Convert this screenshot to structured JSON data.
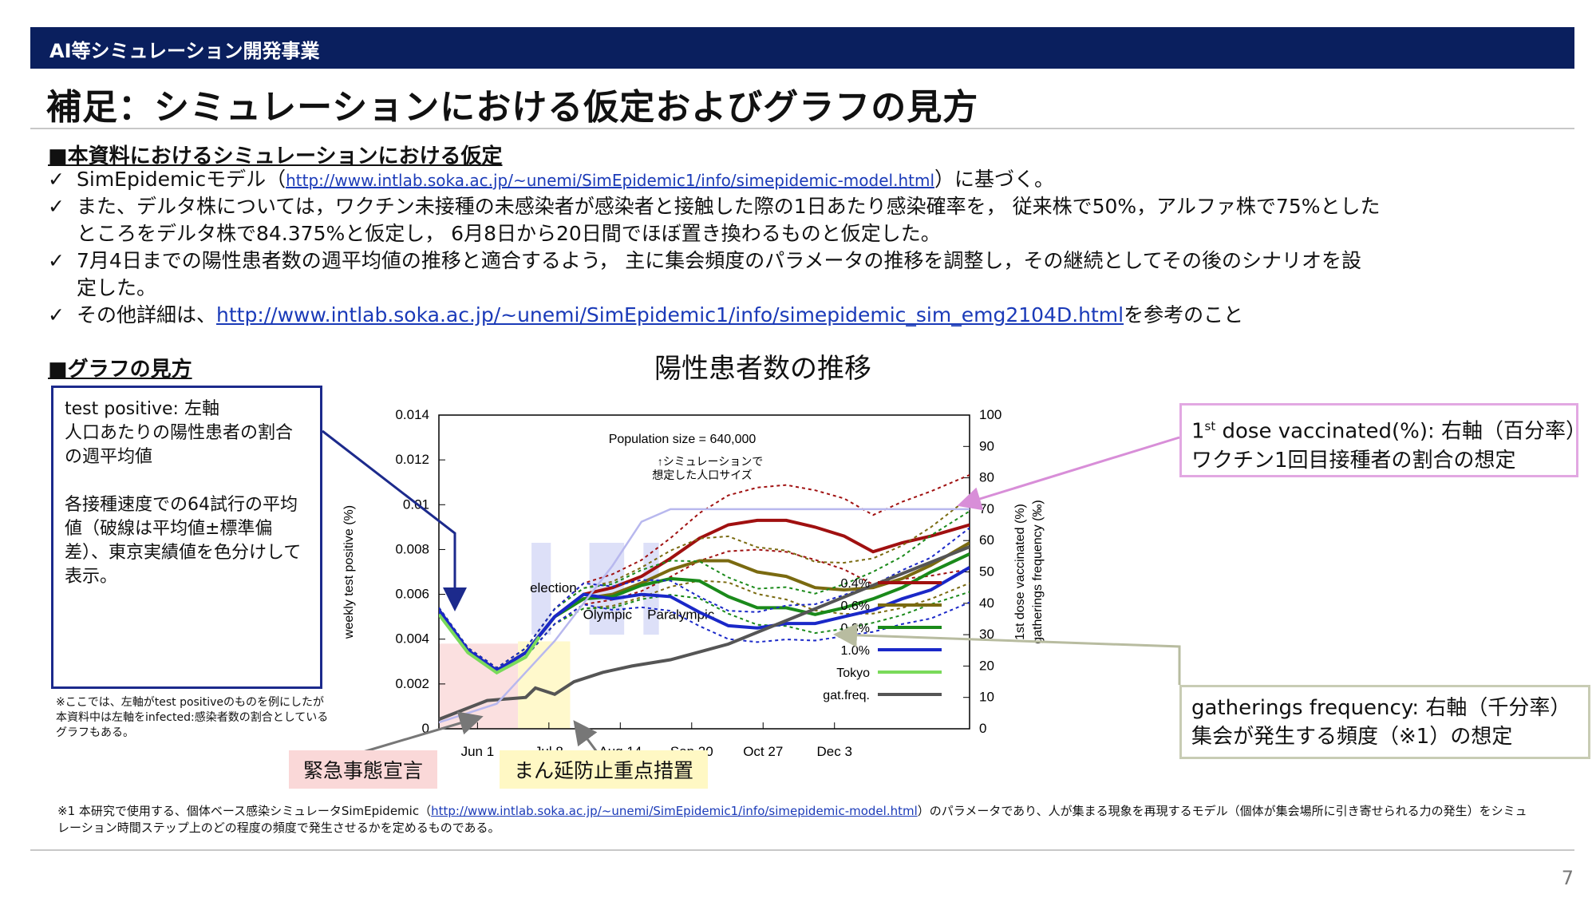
{
  "header": {
    "label": "AI等シミュレーション開発事業"
  },
  "title": "補足：シミュレーションにおける仮定およびグラフの見方",
  "assumptions": {
    "heading": "■本資料におけるシミュレーションにおける仮定",
    "bullet1_pre": "SimEpidemicモデル（",
    "bullet1_link": "http://www.intlab.soka.ac.jp/~unemi/SimEpidemic1/info/simepidemic-model.html",
    "bullet1_post": "）に基づく。",
    "bullet2_line1": "また、デルタ株については，ワクチン未接種の未感染者が感染者と接触した際の1日あたり感染確率を， 従来株で50%，アルファ株で75%とした",
    "bullet2_line2": "ところをデルタ株で84.375%と仮定し， 6月8日から20日間でほぼ置き換わるものと仮定した。",
    "bullet3_line1": "7月4日までの陽性患者数の週平均値の推移と適合するよう， 主に集会頻度のパラメータの推移を調整し，その継続としてその後のシナリオを設",
    "bullet3_line2": "定した。",
    "bullet4_pre": "その他詳細は、",
    "bullet4_link": "http://www.intlab.soka.ac.jp/~unemi/SimEpidemic1/info/simepidemic_sim_emg2104D.html",
    "bullet4_post": "を参考のこと",
    "check": "✓"
  },
  "graph_guide": {
    "heading": "■グラフの見方",
    "box_line1": "test positive: 左軸",
    "box_line2": "人口あたりの陽性患者の割合の週平均値",
    "box_line3": "各接種速度での64試行の平均値（破線は平均値±標準偏差）、東京実績値を色分けして表示。",
    "small_note": [
      "※ここでは、左軸がtest positiveのものを例にしたが",
      "本資料中は左軸をinfected:感染者数の割合としている",
      "グラフもある。"
    ]
  },
  "chart_title": "陽性患者数の推移",
  "callouts": {
    "vax_line1_pre": "1",
    "vax_line1_sup": "st",
    "vax_line1_post": " dose vaccinated(%): 右軸（百分率）",
    "vax_line2": "ワクチン1回目接種者の割合の想定",
    "gat_line1": "gatherings frequency: 右軸（千分率）",
    "gat_line2": "集会が発生する頻度（※1）の想定"
  },
  "tags": {
    "emergency": "緊急事態宣言",
    "priority": "まん延防止重点措置"
  },
  "footnote": {
    "pre": "※1 本研究で使用する、個体ベース感染シミュレータSimEpidemic（",
    "link": "http://www.intlab.soka.ac.jp/~unemi/SimEpidemic1/info/simepidemic-model.html",
    "post": "）のパラメータであり、人が集まる現象を再現するモデル（個体が集会場所に引き寄せられる力の発生）をシミュ",
    "line2": "レーション時間ステップ上のどの程度の頻度で発生させるかを定めるものである。"
  },
  "page_number": "7",
  "colors": {
    "series_0_4": "#a01010",
    "series_0_6": "#7a6a10",
    "series_0_8": "#1a8a1a",
    "series_1_0": "#1a28c8",
    "tokyo": "#7ada5a",
    "gat_freq": "#555555",
    "vaccinated": "#b8b8ee"
  },
  "chart_data": {
    "type": "line",
    "annotation_population": "Population size = 640,000",
    "annotation_sim_line1": "↑シミュレーションで",
    "annotation_sim_line2": "想定した人口サイズ",
    "event_labels": [
      "election",
      "Olympic",
      "Paralympic"
    ],
    "x_ticks": [
      "Jun 1",
      "Jul 8",
      "Aug 14",
      "Sep 20",
      "Oct 27",
      "Dec 3"
    ],
    "ylabel_left": "weekly test positive (%)",
    "ylabel_right_1": "1st dose vaccinated (%)",
    "ylabel_right_2": "gatherings frequency (‰)",
    "y_left_ticks": [
      "0",
      "0.002",
      "0.004",
      "0.006",
      "0.008",
      "0.01",
      "0.012",
      "0.014"
    ],
    "y_right_ticks": [
      "0",
      "10",
      "20",
      "30",
      "40",
      "50",
      "60",
      "70",
      "80",
      "90",
      "100"
    ],
    "ylim_left": [
      0,
      0.014
    ],
    "ylim_right": [
      0,
      100
    ],
    "legend_placement": "bottom-right",
    "x_day_values": [
      0,
      15,
      30,
      45,
      60,
      75,
      90,
      105,
      120,
      135,
      150,
      165,
      180,
      195,
      210,
      225,
      240,
      255,
      275
    ],
    "series": [
      {
        "name": "0.4%",
        "axis": "left",
        "color_key": "series_0_4",
        "values": [
          0.0053,
          0.0035,
          0.0026,
          0.0034,
          0.005,
          0.006,
          0.0063,
          0.0068,
          0.0076,
          0.0085,
          0.0091,
          0.0093,
          0.0093,
          0.009,
          0.0086,
          0.0079,
          0.0083,
          0.0086,
          0.0091
        ]
      },
      {
        "name": "0.6%",
        "axis": "left",
        "color_key": "series_0_6",
        "values": [
          0.0053,
          0.0035,
          0.0026,
          0.0034,
          0.005,
          0.0058,
          0.006,
          0.0065,
          0.0071,
          0.0075,
          0.0075,
          0.007,
          0.0068,
          0.0063,
          0.0062,
          0.0063,
          0.0067,
          0.0073,
          0.0083
        ]
      },
      {
        "name": "0.8%",
        "axis": "left",
        "color_key": "series_0_8",
        "values": [
          0.0053,
          0.0035,
          0.0026,
          0.0034,
          0.005,
          0.0058,
          0.0059,
          0.0064,
          0.0067,
          0.0066,
          0.0059,
          0.0054,
          0.0054,
          0.0051,
          0.0054,
          0.0058,
          0.0063,
          0.007,
          0.0078
        ]
      },
      {
        "name": "1.0%",
        "axis": "left",
        "color_key": "series_1_0",
        "values": [
          0.0053,
          0.0035,
          0.0026,
          0.0034,
          0.005,
          0.006,
          0.0058,
          0.006,
          0.0059,
          0.0052,
          0.0046,
          0.0045,
          0.0047,
          0.0047,
          0.005,
          0.0053,
          0.0058,
          0.0062,
          0.0072
        ]
      },
      {
        "name": "Tokyo",
        "axis": "left",
        "color_key": "tokyo",
        "x": [
          0,
          15,
          30,
          45,
          52
        ],
        "values": [
          0.0051,
          0.0034,
          0.0025,
          0.0032,
          0.0041
        ]
      },
      {
        "name": "gat.freq.",
        "axis": "right",
        "color_key": "gat_freq",
        "x": [
          0,
          25,
          45,
          50,
          60,
          70,
          85,
          100,
          120,
          150,
          190,
          230,
          275
        ],
        "values": [
          3,
          9,
          10,
          13,
          11,
          15,
          18,
          20,
          22,
          27,
          37,
          47,
          58
        ]
      },
      {
        "name": "vaccinated",
        "axis": "right",
        "color_key": "vaccinated",
        "x": [
          0,
          30,
          60,
          90,
          105,
          120,
          275
        ],
        "values": [
          2,
          8,
          28,
          52,
          66,
          70,
          70
        ]
      }
    ]
  }
}
